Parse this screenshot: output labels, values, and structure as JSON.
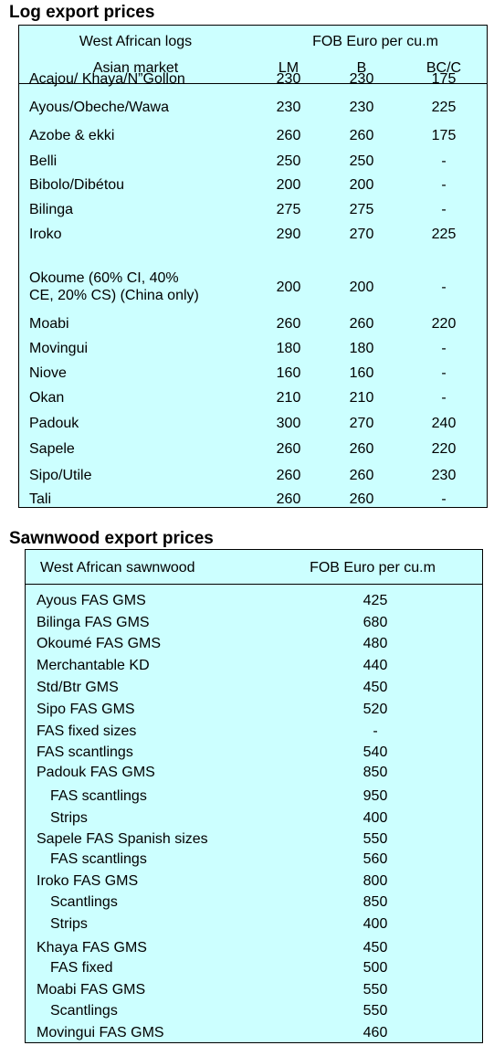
{
  "log_title": "Log export prices",
  "log_table": {
    "header1": {
      "left": "West African logs",
      "right": "FOB Euro per cu.m"
    },
    "header2": {
      "left": "Asian market",
      "cols": [
        "LM",
        "B",
        "BC/C"
      ]
    },
    "rows": [
      {
        "name": [
          "Acajou/ Khaya/N”Gollon"
        ],
        "lm": "230",
        "b": "230",
        "bcc": "175"
      },
      {
        "name": [
          "Ayous/Obeche/Wawa"
        ],
        "lm": "230",
        "b": "230",
        "bcc": "225"
      },
      {
        "name": [
          "Azobe & ekki"
        ],
        "lm": "260",
        "b": "260",
        "bcc": "175"
      },
      {
        "name": [
          "Belli"
        ],
        "lm": "250",
        "b": "250",
        "bcc": "-"
      },
      {
        "name": [
          "Bibolo/Dibétou"
        ],
        "lm": "200",
        "b": "200",
        "bcc": "-"
      },
      {
        "name": [
          "Bilinga"
        ],
        "lm": "275",
        "b": "275",
        "bcc": "-"
      },
      {
        "name": [
          "Iroko"
        ],
        "lm": "290",
        "b": "270",
        "bcc": "225"
      },
      {
        "name": [
          "Okoume (60% CI, 40%",
          "CE, 20% CS) (China only)"
        ],
        "lm": "200",
        "b": "200",
        "bcc": "-"
      },
      {
        "name": [
          "Moabi"
        ],
        "lm": "260",
        "b": "260",
        "bcc": "220"
      },
      {
        "name": [
          "Movingui"
        ],
        "lm": "180",
        "b": "180",
        "bcc": "-"
      },
      {
        "name": [
          "Niove"
        ],
        "lm": "160",
        "b": "160",
        "bcc": "-"
      },
      {
        "name": [
          "Okan"
        ],
        "lm": "210",
        "b": "210",
        "bcc": "-"
      },
      {
        "name": [
          "Padouk"
        ],
        "lm": "300",
        "b": "270",
        "bcc": "240"
      },
      {
        "name": [
          "Sapele"
        ],
        "lm": "260",
        "b": "260",
        "bcc": "220"
      },
      {
        "name": [
          "Sipo/Utile"
        ],
        "lm": "260",
        "b": "260",
        "bcc": "230"
      },
      {
        "name": [
          "Tali"
        ],
        "lm": "260",
        "b": "260",
        "bcc": "-"
      }
    ]
  },
  "sawn_title": "Sawnwood export prices",
  "sawn_table": {
    "header": {
      "left": "West African sawnwood",
      "right": "FOB Euro per cu.m"
    },
    "rows": [
      {
        "name": "Ayous FAS GMS",
        "value": "425",
        "indent": false
      },
      {
        "name": "Bilinga FAS GMS",
        "value": "680",
        "indent": false
      },
      {
        "name": "Okoumé FAS GMS",
        "value": "480",
        "indent": false
      },
      {
        "name": "Merchantable KD",
        "value": "440",
        "indent": false
      },
      {
        "name": "Std/Btr GMS",
        "value": "450",
        "indent": false
      },
      {
        "name": "Sipo FAS GMS",
        "value": "520",
        "indent": false
      },
      {
        "name": "FAS fixed sizes",
        "value": "-",
        "indent": false
      },
      {
        "name": "FAS scantlings",
        "value": "540",
        "indent": false
      },
      {
        "name": "Padouk FAS GMS",
        "value": "850",
        "indent": false
      },
      {
        "name": "FAS scantlings",
        "value": "950",
        "indent": true
      },
      {
        "name": "Strips",
        "value": "400",
        "indent": true
      },
      {
        "name": "Sapele FAS Spanish sizes",
        "value": "550",
        "indent": false
      },
      {
        "name": "FAS scantlings",
        "value": "560",
        "indent": true
      },
      {
        "name": "Iroko FAS GMS",
        "value": "800",
        "indent": false
      },
      {
        "name": "Scantlings",
        "value": "850",
        "indent": true
      },
      {
        "name": "Strips",
        "value": "400",
        "indent": true
      },
      {
        "name": "Khaya FAS GMS",
        "value": "450",
        "indent": false
      },
      {
        "name": "FAS fixed",
        "value": "500",
        "indent": true
      },
      {
        "name": "Moabi FAS GMS",
        "value": "550",
        "indent": false
      },
      {
        "name": "Scantlings",
        "value": "550",
        "indent": true
      },
      {
        "name": "Movingui FAS GMS",
        "value": "460",
        "indent": false
      }
    ]
  }
}
